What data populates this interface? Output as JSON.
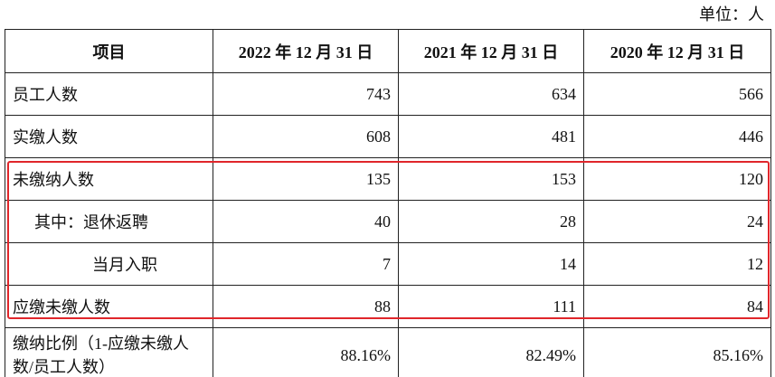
{
  "unit": "单位：人",
  "table": {
    "header": [
      "项目",
      "2022 年 12 月 31 日",
      "2021 年 12 月 31 日",
      "2020 年 12 月 31 日"
    ],
    "rows": [
      [
        "员工人数",
        "743",
        "634",
        "566"
      ],
      [
        "实缴人数",
        "608",
        "481",
        "446"
      ],
      [
        "未缴纳人数",
        "135",
        "153",
        "120"
      ],
      [
        "其中：退休返聘",
        "40",
        "28",
        "24"
      ],
      [
        "当月入职",
        "7",
        "14",
        "12"
      ],
      [
        "应缴未缴人数",
        "88",
        "111",
        "84"
      ],
      [
        "缴纳比例（1-应缴未缴人数/员工人数）",
        "88.16%",
        "82.49%",
        "85.16%"
      ]
    ]
  }
}
